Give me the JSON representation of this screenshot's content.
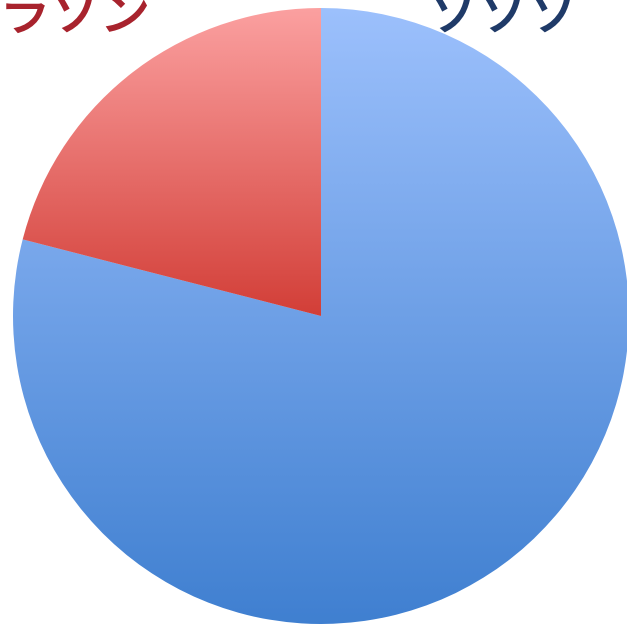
{
  "chart_data": {
    "type": "pie",
    "title": "",
    "title_fragments": [
      {
        "text": "ラソン",
        "color": "#a8232d"
      },
      {
        "text": "ソソソ",
        "color": "#1f3a68"
      }
    ],
    "series": [
      {
        "name": "",
        "values": [
          79,
          21
        ]
      }
    ],
    "slices": [
      {
        "value": 79,
        "color_top": "#9cc0fc",
        "color_bottom": "#3f7fd0"
      },
      {
        "value": 21,
        "color_top": "#fba0a0",
        "color_bottom": "#d23e37"
      }
    ],
    "start_angle_deg": 0,
    "direction": "clockwise",
    "legend": "none",
    "data_labels": "none"
  }
}
